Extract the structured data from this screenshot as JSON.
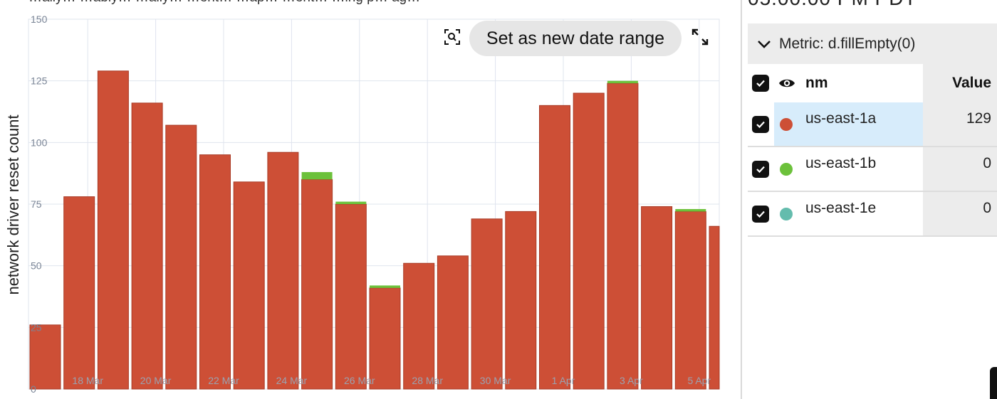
{
  "header": {
    "text": "…ally… …ably… …ally… …ent… …ap… …ent… …ing p… ag…"
  },
  "toolbar": {
    "zoom_icon": "zoom-search-icon",
    "set_range_label": "Set as new date range",
    "expand_icon": "expand-icon"
  },
  "panel": {
    "time": "05:00:00 PM PDT",
    "metric_label": "Metric: d.fillEmpty(0)",
    "columns": {
      "name": "nm",
      "value": "Value"
    },
    "rows": [
      {
        "name": "us-east-1a",
        "value": "129",
        "color": "#cd4f36"
      },
      {
        "name": "us-east-1b",
        "value": "0",
        "color": "#6cc13b"
      },
      {
        "name": "us-east-1e",
        "value": "0",
        "color": "#64bcad"
      }
    ]
  },
  "chart_data": {
    "type": "bar",
    "stacked": true,
    "ylabel": "network driver reset count",
    "ylim": [
      0,
      150
    ],
    "yticks": [
      0,
      25,
      50,
      75,
      100,
      125,
      150
    ],
    "xtick_labels": [
      "18 Mar",
      "20 Mar",
      "22 Mar",
      "24 Mar",
      "26 Mar",
      "28 Mar",
      "30 Mar",
      "1 Apr",
      "3 Apr",
      "5 Apr"
    ],
    "grid": true,
    "series": [
      {
        "name": "us-east-1a",
        "color": "#cd4f36",
        "values": [
          26,
          78,
          129,
          116,
          107,
          95,
          84,
          96,
          85,
          75,
          41,
          51,
          54,
          69,
          72,
          115,
          120,
          124,
          74,
          72,
          66
        ]
      },
      {
        "name": "us-east-1b",
        "color": "#6cc13b",
        "values": [
          0,
          0,
          0,
          0,
          0,
          0,
          0,
          0,
          3,
          1,
          1,
          0,
          0,
          0,
          0,
          0,
          0,
          1,
          0,
          1,
          0
        ]
      }
    ]
  }
}
